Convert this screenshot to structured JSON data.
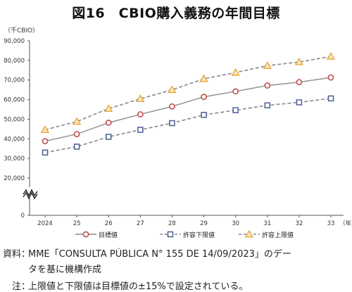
{
  "title": "図16　CBIO購入義務の年間目標",
  "unit_label": "（千CBIO）",
  "x_unit": "（年）",
  "chart_data": {
    "type": "line",
    "categories": [
      "2024",
      "25",
      "26",
      "27",
      "28",
      "29",
      "30",
      "31",
      "32",
      "33"
    ],
    "ylim": [
      0,
      90000
    ],
    "y_ticks": [
      "90,000",
      "80,000",
      "70,000",
      "60,000",
      "50,000",
      "40,000",
      "30,000",
      "20,000",
      "0"
    ],
    "axis_break": true,
    "grid": false,
    "legend_position": "bottom",
    "series": [
      {
        "name": "目標値",
        "color": "#c0504d",
        "marker": "circle",
        "dash": "solid",
        "values": [
          38800,
          42400,
          48200,
          52500,
          56500,
          61400,
          64200,
          67200,
          68900,
          71300
        ]
      },
      {
        "name": "許容下限値",
        "color": "#4a5f93",
        "marker": "square",
        "dash": "dashed",
        "values": [
          33000,
          36000,
          41000,
          44600,
          48000,
          52200,
          54600,
          57100,
          58600,
          60600
        ]
      },
      {
        "name": "許容上限値",
        "color": "#e3a33a",
        "marker": "triangle",
        "dash": "dashed",
        "values": [
          44600,
          48800,
          55400,
          60400,
          65000,
          70600,
          73800,
          77300,
          79200,
          82000
        ]
      }
    ]
  },
  "source_note": {
    "label": "資料：",
    "line1": "MME「CONSULTA PÚBLICA N° 155 DE 14/09/2023」のデー",
    "line2": "タを基に機構作成"
  },
  "footnote": {
    "label": "注：",
    "text": "上限値と下限値は目標値の±15%で設定されている。"
  }
}
